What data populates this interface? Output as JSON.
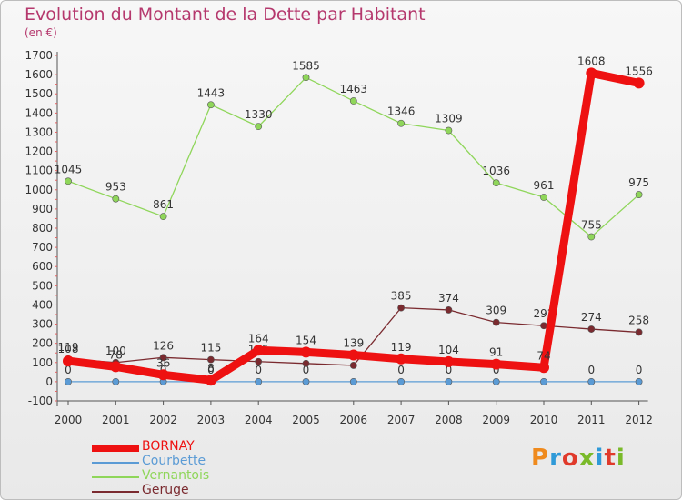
{
  "header": {
    "title": "Evolution du Montant de la Dette par Habitant",
    "subtitle": "(en €)"
  },
  "brand": {
    "logo_text": "Proxiti",
    "colors": [
      "#ef8a1d",
      "#2f9ad8",
      "#e03a2b",
      "#7aba2a",
      "#2f9ad8",
      "#e03a2b",
      "#7aba2a"
    ]
  },
  "chart_data": {
    "type": "line",
    "title": "Evolution du Montant de la Dette par Habitant",
    "subtitle": "(en €)",
    "x": [
      "2000",
      "2001",
      "2002",
      "2003",
      "2004",
      "2005",
      "2006",
      "2007",
      "2008",
      "2009",
      "2010",
      "2011",
      "2012"
    ],
    "y_ticks": [
      "-100",
      "0",
      "100",
      "200",
      "300",
      "400",
      "500",
      "600",
      "700",
      "800",
      "900",
      "1000",
      "1100",
      "1200",
      "1300",
      "1400",
      "1500",
      "1600",
      "1700"
    ],
    "ylim": [
      -100,
      1700
    ],
    "grid": false,
    "legend_position": "bottom-left",
    "series": [
      {
        "name": "Courbette",
        "color": "#5b9bd5",
        "values": [
          0,
          0,
          0,
          0,
          0,
          0,
          0,
          0,
          0,
          0,
          0,
          0,
          0
        ],
        "labels": [
          "0",
          "0",
          "0",
          "0",
          "0",
          "0",
          "0",
          "0",
          "0",
          "0",
          "0",
          "0",
          "0"
        ],
        "label_show": [
          true,
          false,
          true,
          true,
          true,
          true,
          false,
          true,
          true,
          true,
          false,
          true,
          true
        ]
      },
      {
        "name": "Geruge",
        "color": "#7a2a2f",
        "values": [
          119,
          100,
          126,
          115,
          105,
          95,
          85,
          385,
          374,
          309,
          292,
          274,
          258
        ],
        "labels": [
          "119",
          "100",
          "126",
          "115",
          "105",
          "95",
          "85",
          "385",
          "374",
          "309",
          "292",
          "274",
          "258"
        ],
        "label_show": [
          true,
          true,
          true,
          true,
          true,
          false,
          false,
          true,
          true,
          true,
          true,
          true,
          true
        ]
      },
      {
        "name": "Vernantois",
        "color": "#8fd65a",
        "values": [
          1045,
          953,
          861,
          1443,
          1330,
          1585,
          1463,
          1346,
          1309,
          1036,
          961,
          755,
          975
        ],
        "labels": [
          "1045",
          "953",
          "861",
          "1443",
          "1330",
          "1585",
          "1463",
          "1346",
          "1309",
          "1036",
          "961",
          "755",
          "975"
        ],
        "label_show": [
          true,
          true,
          true,
          true,
          true,
          true,
          true,
          true,
          true,
          true,
          true,
          true,
          true
        ]
      },
      {
        "name": "BORNAY",
        "color": "#ee1111",
        "values": [
          108,
          78,
          36,
          8,
          164,
          154,
          139,
          119,
          104,
          91,
          74,
          1608,
          1556
        ],
        "labels": [
          "108",
          "78",
          "36",
          "8",
          "164",
          "154",
          "139",
          "119",
          "104",
          "91",
          "74",
          "1608",
          "1556"
        ],
        "label_show": [
          true,
          true,
          true,
          true,
          true,
          true,
          true,
          true,
          true,
          true,
          true,
          true,
          true
        ]
      }
    ],
    "legend": [
      {
        "name": "BORNAY",
        "color": "#ee1111",
        "thick": true
      },
      {
        "name": "Courbette",
        "color": "#5b9bd5",
        "thick": false
      },
      {
        "name": "Vernantois",
        "color": "#8fd65a",
        "thick": false
      },
      {
        "name": "Geruge",
        "color": "#7a2a2f",
        "thick": false
      }
    ]
  }
}
